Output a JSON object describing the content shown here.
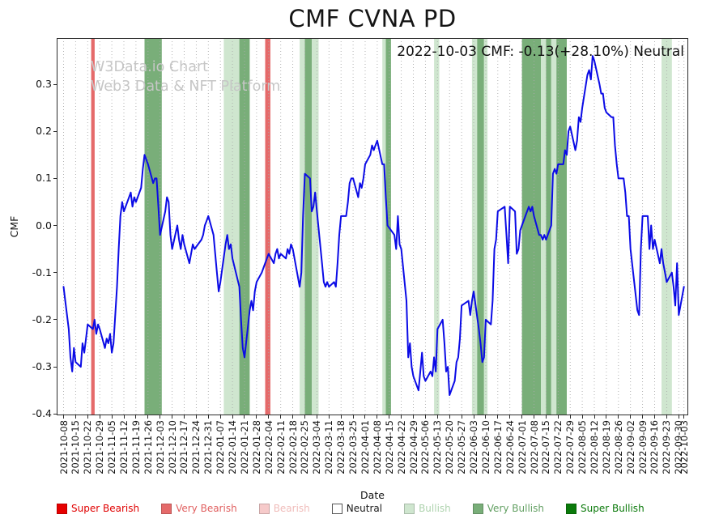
{
  "figure": {
    "title": "CMF CVNA PD",
    "annotation": "2022-10-03 CMF: -0.13(+28.10%) Neutral",
    "watermark_line1": "W3Data.io Chart",
    "watermark_line2": "Web3 Data & NFT Platform",
    "xlabel": "Date",
    "ylabel": "CMF"
  },
  "legend": {
    "items": [
      {
        "label": "Super Bearish",
        "level": "super_bearish",
        "text_color": "#e00000"
      },
      {
        "label": "Very Bearish",
        "level": "very_bearish",
        "text_color": "#e05f5f"
      },
      {
        "label": "Bearish",
        "level": "bearish",
        "text_color": "#f0bcba"
      },
      {
        "label": "Neutral",
        "level": "neutral",
        "text_color": "#1a1a1a"
      },
      {
        "label": "Bullish",
        "level": "bullish",
        "text_color": "#aed3ae"
      },
      {
        "label": "Very Bullish",
        "level": "very_bullish",
        "text_color": "#63a063"
      },
      {
        "label": "Super Bullish",
        "level": "super_bullish",
        "text_color": "#0b7a0b"
      }
    ]
  },
  "chart_data": {
    "type": "line",
    "title": "CMF CVNA PD",
    "annotation": "2022-10-03 CMF: -0.13(+28.10%) Neutral",
    "xlabel": "Date",
    "ylabel": "CMF",
    "ylim": [
      -0.403,
      0.398
    ],
    "grid": "vertical-dotted",
    "y_tick_values": [
      0.3,
      0.2,
      0.1,
      0.0,
      -0.1,
      -0.2,
      -0.3,
      -0.4
    ],
    "y_tick_labels": [
      "0.3",
      "0.2",
      "0.1",
      "0.0",
      "-0.1",
      "-0.2",
      "-0.3",
      "-0.4"
    ],
    "x_axis": {
      "day0": "2021-10-08",
      "min_day": -4,
      "max_day": 362.5,
      "tick_days": [
        0,
        7,
        14,
        21,
        28,
        35,
        42,
        49,
        56,
        63,
        70,
        77,
        84,
        91,
        98,
        105,
        112,
        119,
        126,
        133,
        140,
        147,
        154,
        161,
        168,
        175,
        182,
        189,
        196,
        203,
        210,
        217,
        224,
        231,
        238,
        245,
        252,
        259,
        266,
        273,
        280,
        287,
        294,
        301,
        308,
        315,
        322,
        329,
        336,
        343,
        350,
        357,
        360
      ],
      "tick_labels": [
        "2021-10-08",
        "2021-10-15",
        "2021-10-22",
        "2021-10-29",
        "2021-11-05",
        "2021-11-12",
        "2021-11-19",
        "2021-11-26",
        "2021-12-03",
        "2021-12-10",
        "2021-12-17",
        "2021-12-24",
        "2021-12-31",
        "2022-01-07",
        "2022-01-14",
        "2022-01-21",
        "2022-01-28",
        "2022-02-04",
        "2022-02-11",
        "2022-02-18",
        "2022-02-25",
        "2022-03-04",
        "2022-03-11",
        "2022-03-18",
        "2022-03-25",
        "2022-04-01",
        "2022-04-08",
        "2022-04-15",
        "2022-04-22",
        "2022-04-29",
        "2022-05-06",
        "2022-05-13",
        "2022-05-20",
        "2022-05-27",
        "2022-06-03",
        "2022-06-10",
        "2022-06-17",
        "2022-06-24",
        "2022-07-01",
        "2022-07-08",
        "2022-07-15",
        "2022-07-22",
        "2022-07-29",
        "2022-08-05",
        "2022-08-12",
        "2022-08-19",
        "2022-08-26",
        "2022-09-02",
        "2022-09-09",
        "2022-09-16",
        "2022-09-23",
        "2022-09-30",
        "2022-10-03"
      ]
    },
    "level_colors": {
      "super_bearish": "#e60000",
      "very_bearish": "#e56a6a",
      "bearish": "#f6caca",
      "neutral": "#ffffff",
      "bullish": "#cfe6cf",
      "very_bullish": "#79ae79",
      "super_bullish": "#0a7a0a"
    },
    "bands": [
      {
        "start_day": 16,
        "end_day": 18,
        "level": "very_bearish"
      },
      {
        "start_day": 47,
        "end_day": 57,
        "level": "very_bullish"
      },
      {
        "start_day": 93,
        "end_day": 102,
        "level": "bullish"
      },
      {
        "start_day": 102,
        "end_day": 108,
        "level": "very_bullish"
      },
      {
        "start_day": 117,
        "end_day": 120,
        "level": "very_bearish"
      },
      {
        "start_day": 137,
        "end_day": 140,
        "level": "bullish"
      },
      {
        "start_day": 140,
        "end_day": 144,
        "level": "very_bullish"
      },
      {
        "start_day": 144,
        "end_day": 148,
        "level": "bullish"
      },
      {
        "start_day": 185,
        "end_day": 187,
        "level": "bullish"
      },
      {
        "start_day": 187,
        "end_day": 190,
        "level": "very_bullish"
      },
      {
        "start_day": 215,
        "end_day": 218,
        "level": "bullish"
      },
      {
        "start_day": 237,
        "end_day": 240,
        "level": "bullish"
      },
      {
        "start_day": 240,
        "end_day": 244,
        "level": "very_bullish"
      },
      {
        "start_day": 244,
        "end_day": 246,
        "level": "bullish"
      },
      {
        "start_day": 266,
        "end_day": 277,
        "level": "very_bullish"
      },
      {
        "start_day": 277,
        "end_day": 280,
        "level": "bullish"
      },
      {
        "start_day": 280,
        "end_day": 283,
        "level": "very_bullish"
      },
      {
        "start_day": 283,
        "end_day": 286,
        "level": "bullish"
      },
      {
        "start_day": 286,
        "end_day": 292,
        "level": "very_bullish"
      },
      {
        "start_day": 347,
        "end_day": 353,
        "level": "bullish"
      }
    ],
    "line": {
      "name": "CMF",
      "color": "#0b0be6",
      "x_days": [
        0,
        1,
        3,
        4,
        5,
        6,
        7,
        10,
        11,
        12,
        13,
        14,
        17,
        18,
        19,
        20,
        21,
        24,
        25,
        26,
        27,
        28,
        29,
        31,
        32,
        33,
        34,
        35,
        38,
        39,
        40,
        41,
        42,
        45,
        46,
        47,
        49,
        52,
        53,
        54,
        55,
        56,
        59,
        60,
        61,
        62,
        63,
        66,
        67,
        68,
        69,
        70,
        73,
        74,
        75,
        76,
        80,
        81,
        82,
        83,
        84,
        87,
        88,
        89,
        90,
        91,
        94,
        95,
        96,
        97,
        98,
        102,
        103,
        104,
        105,
        108,
        109,
        110,
        111,
        112,
        115,
        116,
        117,
        118,
        119,
        122,
        123,
        124,
        125,
        126,
        129,
        130,
        131,
        132,
        133,
        137,
        138,
        139,
        140,
        143,
        144,
        145,
        146,
        147,
        150,
        151,
        152,
        153,
        154,
        157,
        158,
        159,
        160,
        161,
        164,
        165,
        166,
        167,
        168,
        171,
        172,
        173,
        174,
        175,
        178,
        179,
        180,
        181,
        182,
        185,
        186,
        187,
        188,
        192,
        193,
        194,
        195,
        196,
        199,
        200,
        201,
        202,
        203,
        206,
        207,
        208,
        209,
        210,
        213,
        214,
        215,
        216,
        217,
        220,
        221,
        222,
        223,
        224,
        227,
        228,
        229,
        230,
        231,
        235,
        236,
        237,
        238,
        241,
        242,
        243,
        244,
        245,
        248,
        249,
        250,
        251,
        252,
        256,
        257,
        258,
        259,
        262,
        263,
        264,
        265,
        266,
        270,
        271,
        272,
        273,
        276,
        277,
        278,
        279,
        280,
        283,
        284,
        285,
        286,
        287,
        290,
        291,
        292,
        293,
        294,
        297,
        298,
        299,
        300,
        301,
        304,
        305,
        306,
        307,
        308,
        311,
        312,
        313,
        314,
        315,
        318,
        319,
        320,
        321,
        322,
        325,
        326,
        327,
        328,
        329,
        333,
        334,
        335,
        336,
        339,
        340,
        341,
        342,
        343,
        346,
        347,
        348,
        349,
        350,
        353,
        354,
        355,
        356,
        357,
        360
      ],
      "values": [
        -0.13,
        -0.16,
        -0.22,
        -0.28,
        -0.31,
        -0.26,
        -0.29,
        -0.3,
        -0.25,
        -0.27,
        -0.24,
        -0.21,
        -0.22,
        -0.2,
        -0.23,
        -0.21,
        -0.22,
        -0.26,
        -0.24,
        -0.25,
        -0.23,
        -0.27,
        -0.25,
        -0.13,
        -0.05,
        0.02,
        0.05,
        0.03,
        0.06,
        0.07,
        0.04,
        0.06,
        0.05,
        0.08,
        0.12,
        0.15,
        0.13,
        0.09,
        0.1,
        0.1,
        0.04,
        -0.02,
        0.03,
        0.06,
        0.05,
        -0.02,
        -0.05,
        0.0,
        -0.03,
        -0.05,
        -0.02,
        -0.04,
        -0.08,
        -0.06,
        -0.04,
        -0.05,
        -0.03,
        -0.02,
        0.0,
        0.01,
        0.02,
        -0.02,
        -0.06,
        -0.1,
        -0.14,
        -0.12,
        -0.04,
        -0.02,
        -0.05,
        -0.04,
        -0.07,
        -0.13,
        -0.2,
        -0.26,
        -0.28,
        -0.18,
        -0.16,
        -0.18,
        -0.14,
        -0.12,
        -0.1,
        -0.09,
        -0.08,
        -0.07,
        -0.06,
        -0.08,
        -0.06,
        -0.05,
        -0.07,
        -0.06,
        -0.07,
        -0.05,
        -0.06,
        -0.04,
        -0.05,
        -0.13,
        -0.1,
        0.02,
        0.11,
        0.1,
        0.03,
        0.04,
        0.07,
        0.03,
        -0.08,
        -0.12,
        -0.13,
        -0.12,
        -0.13,
        -0.12,
        -0.13,
        -0.08,
        -0.02,
        0.02,
        0.02,
        0.05,
        0.09,
        0.1,
        0.1,
        0.06,
        0.09,
        0.08,
        0.1,
        0.13,
        0.15,
        0.17,
        0.16,
        0.17,
        0.18,
        0.13,
        0.13,
        0.06,
        0.0,
        -0.02,
        -0.05,
        0.02,
        -0.04,
        -0.05,
        -0.16,
        -0.28,
        -0.25,
        -0.3,
        -0.32,
        -0.35,
        -0.31,
        -0.27,
        -0.32,
        -0.33,
        -0.31,
        -0.32,
        -0.28,
        -0.31,
        -0.22,
        -0.2,
        -0.25,
        -0.31,
        -0.3,
        -0.36,
        -0.33,
        -0.29,
        -0.28,
        -0.24,
        -0.17,
        -0.16,
        -0.19,
        -0.16,
        -0.14,
        -0.22,
        -0.25,
        -0.29,
        -0.28,
        -0.2,
        -0.21,
        -0.16,
        -0.05,
        -0.03,
        0.03,
        0.04,
        -0.02,
        -0.08,
        0.04,
        0.03,
        -0.06,
        -0.05,
        -0.01,
        0.0,
        0.04,
        0.03,
        0.04,
        0.02,
        -0.02,
        -0.02,
        -0.03,
        -0.02,
        -0.03,
        0.0,
        0.11,
        0.12,
        0.11,
        0.13,
        0.13,
        0.16,
        0.15,
        0.2,
        0.21,
        0.16,
        0.18,
        0.23,
        0.22,
        0.25,
        0.32,
        0.33,
        0.31,
        0.36,
        0.35,
        0.3,
        0.28,
        0.28,
        0.25,
        0.24,
        0.23,
        0.23,
        0.17,
        0.13,
        0.1,
        0.1,
        0.07,
        0.02,
        0.02,
        -0.05,
        -0.18,
        -0.19,
        -0.05,
        0.02,
        0.02,
        -0.05,
        0.0,
        -0.05,
        -0.03,
        -0.08,
        -0.05,
        -0.08,
        -0.1,
        -0.12,
        -0.1,
        -0.13,
        -0.17,
        -0.08,
        -0.19,
        -0.13
      ]
    }
  }
}
